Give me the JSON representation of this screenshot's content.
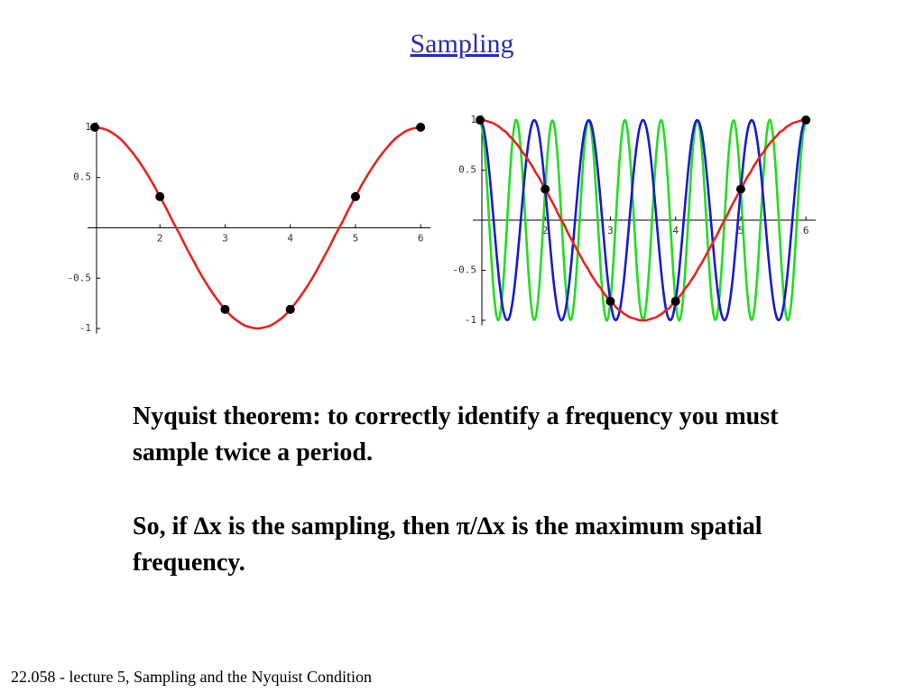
{
  "title": "Sampling",
  "chart_data": [
    {
      "type": "line",
      "xlim": [
        1,
        6.15
      ],
      "ylim": [
        -1.05,
        1.05
      ],
      "xticks": [
        2,
        3,
        4,
        5,
        6
      ],
      "yticks": [
        -1,
        -0.5,
        0.5,
        1
      ],
      "series": [
        {
          "type": "line",
          "color": "#e8231e",
          "x": [
            1,
            1.1,
            1.2,
            1.3,
            1.4,
            1.5,
            1.6,
            1.7,
            1.8,
            1.9,
            2,
            2.1,
            2.2,
            2.3,
            2.4,
            2.5,
            2.6,
            2.7,
            2.8,
            2.9,
            3,
            3.1,
            3.2,
            3.3,
            3.4,
            3.5,
            3.6,
            3.7,
            3.8,
            3.9,
            4,
            4.1,
            4.2,
            4.3,
            4.4,
            4.5,
            4.6,
            4.7,
            4.8,
            4.9,
            5,
            5.1,
            5.2,
            5.3,
            5.4,
            5.5,
            5.6,
            5.7,
            5.8,
            5.9,
            6
          ],
          "values": [
            1,
            0.99,
            0.97,
            0.93,
            0.88,
            0.81,
            0.73,
            0.64,
            0.54,
            0.43,
            0.31,
            0.19,
            0.06,
            -0.06,
            -0.19,
            -0.31,
            -0.43,
            -0.54,
            -0.64,
            -0.73,
            -0.81,
            -0.88,
            -0.93,
            -0.97,
            -0.99,
            -1,
            -0.99,
            -0.97,
            -0.93,
            -0.88,
            -0.81,
            -0.73,
            -0.64,
            -0.54,
            -0.43,
            -0.31,
            -0.19,
            -0.06,
            0.06,
            0.19,
            0.31,
            0.43,
            0.54,
            0.64,
            0.73,
            0.81,
            0.88,
            0.93,
            0.97,
            0.99,
            1
          ]
        },
        {
          "type": "scatter",
          "color": "#000000",
          "x": [
            1,
            2,
            3,
            4,
            5,
            6
          ],
          "values": [
            1,
            0.31,
            -0.81,
            -0.81,
            0.31,
            1
          ]
        }
      ]
    },
    {
      "type": "line",
      "xlim": [
        1,
        6.15
      ],
      "ylim": [
        -1.05,
        1.05
      ],
      "xticks": [
        2,
        3,
        4,
        5,
        6
      ],
      "yticks": [
        -1,
        -0.5,
        0.5,
        1
      ],
      "series": [
        {
          "type": "line",
          "color": "#22dd22",
          "x": [
            1,
            1.05,
            1.1,
            1.15,
            1.2,
            1.25,
            1.3,
            1.35,
            1.4,
            1.45,
            1.5,
            1.55,
            1.6,
            1.65,
            1.7,
            1.75,
            1.8,
            1.85,
            1.9,
            1.95,
            2,
            2.05,
            2.1,
            2.15,
            2.2,
            2.25,
            2.3,
            2.35,
            2.4,
            2.45,
            2.5,
            2.55,
            2.6,
            2.65,
            2.7,
            2.75,
            2.8,
            2.85,
            2.9,
            2.95,
            3,
            3.05,
            3.1,
            3.15,
            3.2,
            3.25,
            3.3,
            3.35,
            3.4,
            3.45,
            3.5,
            3.55,
            3.6,
            3.65,
            3.7,
            3.75,
            3.8,
            3.85,
            3.9,
            3.95,
            4,
            4.05,
            4.1,
            4.15,
            4.2,
            4.25,
            4.3,
            4.35,
            4.4,
            4.45,
            4.5,
            4.55,
            4.6,
            4.65,
            4.7,
            4.75,
            4.8,
            4.85,
            4.9,
            4.95,
            5,
            5.05,
            5.1,
            5.15,
            5.2,
            5.25,
            5.3,
            5.35,
            5.4,
            5.45,
            5.5,
            5.55,
            5.6,
            5.65,
            5.7,
            5.75,
            5.8,
            5.85,
            5.9,
            5.95,
            6
          ],
          "values": [
            1,
            0.84,
            0.43,
            -0.13,
            -0.64,
            -0.95,
            -0.97,
            -0.68,
            -0.19,
            0.37,
            0.81,
            1,
            0.88,
            0.48,
            -0.06,
            -0.59,
            -0.93,
            -0.98,
            -0.73,
            -0.25,
            0.31,
            0.77,
            0.99,
            0.9,
            0.54,
            0,
            -0.54,
            -0.9,
            -0.99,
            -0.77,
            -0.31,
            0.25,
            0.73,
            0.98,
            0.93,
            0.59,
            0.06,
            -0.48,
            -0.88,
            -1,
            -0.81,
            -0.37,
            0.19,
            0.68,
            0.97,
            0.95,
            0.64,
            0.13,
            -0.43,
            -0.84,
            -1,
            -0.84,
            -0.43,
            0.13,
            0.64,
            0.95,
            0.97,
            0.68,
            0.19,
            -0.37,
            -0.81,
            -1,
            -0.88,
            -0.48,
            0.06,
            0.59,
            0.93,
            0.98,
            0.73,
            0.25,
            -0.31,
            -0.77,
            -0.99,
            -0.9,
            -0.54,
            0,
            0.54,
            0.9,
            0.99,
            0.77,
            0.31,
            -0.25,
            -0.73,
            -0.98,
            -0.93,
            -0.59,
            -0.06,
            0.48,
            0.88,
            1,
            0.81,
            0.37,
            -0.19,
            -0.68,
            -0.97,
            -0.95,
            -0.64,
            -0.13,
            0.43,
            0.84,
            1
          ]
        },
        {
          "type": "line",
          "color": "#1a1ad0",
          "x": [
            1,
            1.05,
            1.1,
            1.15,
            1.2,
            1.25,
            1.3,
            1.35,
            1.4,
            1.45,
            1.5,
            1.55,
            1.6,
            1.65,
            1.7,
            1.75,
            1.8,
            1.85,
            1.9,
            1.95,
            2,
            2.05,
            2.1,
            2.15,
            2.2,
            2.25,
            2.3,
            2.35,
            2.4,
            2.45,
            2.5,
            2.55,
            2.6,
            2.65,
            2.7,
            2.75,
            2.8,
            2.85,
            2.9,
            2.95,
            3,
            3.05,
            3.1,
            3.15,
            3.2,
            3.25,
            3.3,
            3.35,
            3.4,
            3.45,
            3.5,
            3.55,
            3.6,
            3.65,
            3.7,
            3.75,
            3.8,
            3.85,
            3.9,
            3.95,
            4,
            4.05,
            4.1,
            4.15,
            4.2,
            4.25,
            4.3,
            4.35,
            4.4,
            4.45,
            4.5,
            4.55,
            4.6,
            4.65,
            4.7,
            4.75,
            4.8,
            4.85,
            4.9,
            4.95,
            5,
            5.05,
            5.1,
            5.15,
            5.2,
            5.25,
            5.3,
            5.35,
            5.4,
            5.45,
            5.5,
            5.55,
            5.6,
            5.65,
            5.7,
            5.75,
            5.8,
            5.85,
            5.9,
            5.95,
            6
          ],
          "values": [
            1,
            0.93,
            0.73,
            0.43,
            0.06,
            -0.31,
            -0.64,
            -0.88,
            -0.99,
            -0.97,
            -0.81,
            -0.54,
            -0.19,
            0.19,
            0.54,
            0.81,
            0.97,
            0.99,
            0.88,
            0.64,
            0.31,
            -0.06,
            -0.43,
            -0.73,
            -0.93,
            -1,
            -0.93,
            -0.73,
            -0.43,
            -0.06,
            0.31,
            0.64,
            0.88,
            0.99,
            0.97,
            0.81,
            0.54,
            0.19,
            -0.19,
            -0.54,
            -0.81,
            -0.97,
            -0.99,
            -0.88,
            -0.64,
            -0.31,
            0.06,
            0.43,
            0.73,
            0.93,
            1,
            0.93,
            0.73,
            0.43,
            0.06,
            -0.31,
            -0.64,
            -0.88,
            -0.99,
            -0.97,
            -0.81,
            -0.54,
            -0.19,
            0.19,
            0.54,
            0.81,
            0.97,
            0.99,
            0.88,
            0.64,
            0.31,
            -0.06,
            -0.43,
            -0.73,
            -0.93,
            -1,
            -0.93,
            -0.73,
            -0.43,
            -0.06,
            0.31,
            0.64,
            0.88,
            0.99,
            0.97,
            0.81,
            0.54,
            0.19,
            -0.19,
            -0.54,
            -0.81,
            -0.97,
            -0.99,
            -0.88,
            -0.64,
            -0.31,
            0.06,
            0.43,
            0.73,
            0.93,
            1
          ]
        },
        {
          "type": "line",
          "color": "#e8231e",
          "x": [
            1,
            1.05,
            1.1,
            1.15,
            1.2,
            1.25,
            1.3,
            1.35,
            1.4,
            1.45,
            1.5,
            1.55,
            1.6,
            1.65,
            1.7,
            1.75,
            1.8,
            1.85,
            1.9,
            1.95,
            2,
            2.05,
            2.1,
            2.15,
            2.2,
            2.25,
            2.3,
            2.35,
            2.4,
            2.45,
            2.5,
            2.55,
            2.6,
            2.65,
            2.7,
            2.75,
            2.8,
            2.85,
            2.9,
            2.95,
            3,
            3.05,
            3.1,
            3.15,
            3.2,
            3.25,
            3.3,
            3.35,
            3.4,
            3.45,
            3.5,
            3.55,
            3.6,
            3.65,
            3.7,
            3.75,
            3.8,
            3.85,
            3.9,
            3.95,
            4,
            4.05,
            4.1,
            4.15,
            4.2,
            4.25,
            4.3,
            4.35,
            4.4,
            4.45,
            4.5,
            4.55,
            4.6,
            4.65,
            4.7,
            4.75,
            4.8,
            4.85,
            4.9,
            4.95,
            5,
            5.05,
            5.1,
            5.15,
            5.2,
            5.25,
            5.3,
            5.35,
            5.4,
            5.45,
            5.5,
            5.55,
            5.6,
            5.65,
            5.7,
            5.75,
            5.8,
            5.85,
            5.9,
            5.95,
            6
          ],
          "values": [
            1,
            1,
            0.99,
            0.98,
            0.97,
            0.95,
            0.93,
            0.9,
            0.88,
            0.84,
            0.81,
            0.77,
            0.73,
            0.68,
            0.64,
            0.59,
            0.54,
            0.48,
            0.43,
            0.37,
            0.31,
            0.25,
            0.19,
            0.13,
            0.06,
            0,
            -0.06,
            -0.13,
            -0.19,
            -0.25,
            -0.31,
            -0.37,
            -0.43,
            -0.48,
            -0.54,
            -0.59,
            -0.64,
            -0.68,
            -0.73,
            -0.77,
            -0.81,
            -0.84,
            -0.88,
            -0.9,
            -0.93,
            -0.95,
            -0.97,
            -0.98,
            -0.99,
            -1,
            -1,
            -1,
            -0.99,
            -0.98,
            -0.97,
            -0.95,
            -0.93,
            -0.9,
            -0.88,
            -0.84,
            -0.81,
            -0.77,
            -0.73,
            -0.68,
            -0.64,
            -0.59,
            -0.54,
            -0.48,
            -0.43,
            -0.37,
            -0.31,
            -0.25,
            -0.19,
            -0.13,
            -0.06,
            0,
            0.06,
            0.13,
            0.19,
            0.25,
            0.31,
            0.37,
            0.43,
            0.48,
            0.54,
            0.59,
            0.64,
            0.68,
            0.73,
            0.77,
            0.81,
            0.84,
            0.88,
            0.9,
            0.93,
            0.95,
            0.97,
            0.98,
            0.99,
            1,
            1
          ]
        },
        {
          "type": "scatter",
          "color": "#000000",
          "x": [
            1,
            2,
            3,
            4,
            5,
            6
          ],
          "values": [
            1,
            0.31,
            -0.81,
            -0.81,
            0.31,
            1
          ]
        }
      ]
    }
  ],
  "paragraphs": [
    "Nyquist theorem: to correctly identify a frequency you must sample twice a period.",
    "So, if ∆x is the sampling, then π/∆x is the maximum spatial frequency."
  ],
  "footer": "22.058 - lecture 5, Sampling and the Nyquist Condition"
}
